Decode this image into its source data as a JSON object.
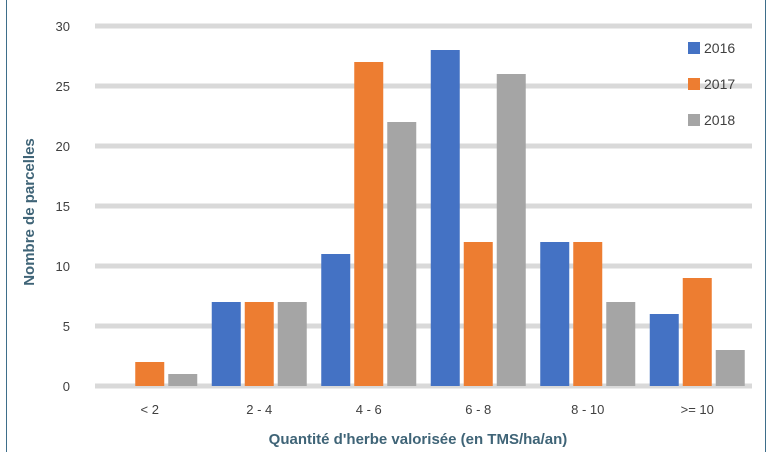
{
  "chart_data": {
    "type": "bar",
    "title": "",
    "xlabel": "Quantité d'herbe valorisée (en TMS/ha/an)",
    "ylabel": "Nombre de parcelles",
    "categories": [
      "< 2",
      "2 - 4",
      "4 - 6",
      "6 - 8",
      "8 - 10",
      ">= 10"
    ],
    "series": [
      {
        "name": "2016",
        "color": "#4472c4",
        "values": [
          0,
          7,
          11,
          28,
          12,
          6
        ]
      },
      {
        "name": "2017",
        "color": "#ed7d31",
        "values": [
          2,
          7,
          27,
          12,
          12,
          9
        ]
      },
      {
        "name": "2018",
        "color": "#a5a5a5",
        "values": [
          1,
          7,
          22,
          26,
          7,
          3
        ]
      }
    ],
    "ylim": [
      0,
      30
    ],
    "yticks": [
      "0",
      "5",
      "10",
      "15",
      "20",
      "25",
      "30"
    ],
    "grid": true,
    "legend": "top-right"
  }
}
